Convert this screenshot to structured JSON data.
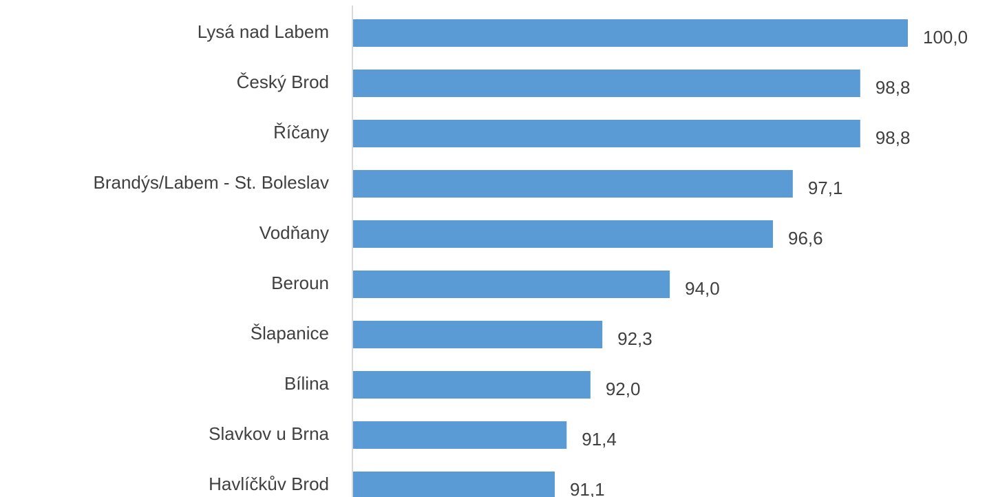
{
  "chart_data": {
    "type": "bar",
    "orientation": "horizontal",
    "categories": [
      "Lysá nad Labem",
      "Český Brod",
      "Říčany",
      "Brandýs/Labem - St. Boleslav",
      "Vodňany",
      "Beroun",
      "Šlapanice",
      "Bílina",
      "Slavkov u Brna",
      "Havlíčkův Brod"
    ],
    "values": [
      100.0,
      98.8,
      98.8,
      97.1,
      96.6,
      94.0,
      92.3,
      92.0,
      91.4,
      91.1
    ],
    "value_labels": [
      "100,0",
      "98,8",
      "98,8",
      "97,1",
      "96,6",
      "94,0",
      "92,3",
      "92,0",
      "91,4",
      "91,1"
    ],
    "color": "#5b9bd5",
    "xlim": [
      86,
      100
    ]
  }
}
